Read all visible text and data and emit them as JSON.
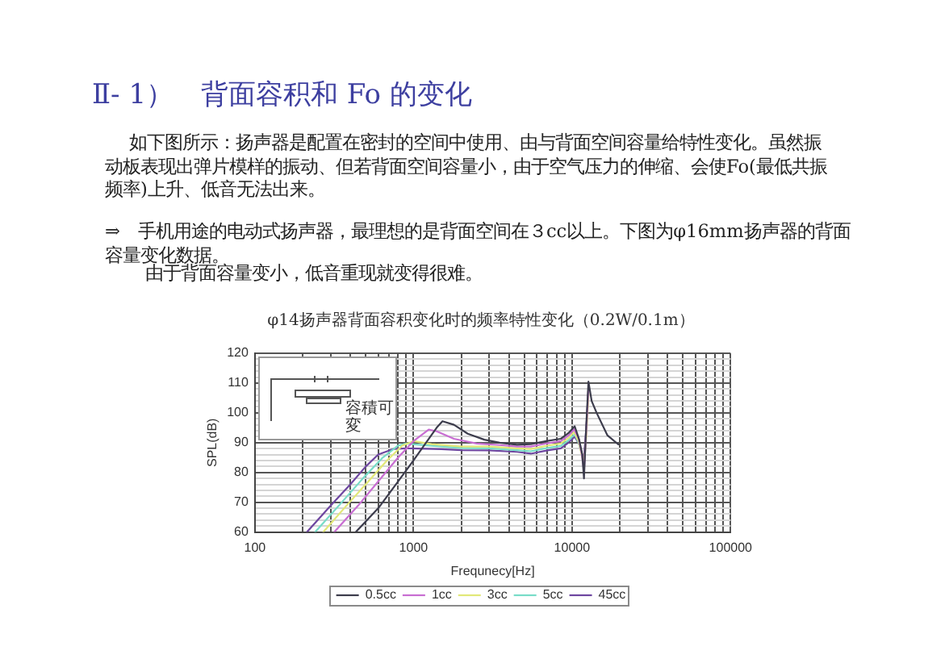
{
  "chart_data": {
    "type": "line",
    "title": "Ⅱ- 1）　背面容积和 Fo 的变化",
    "subtitle": "φ14扬声器背面容积变化时的频率特性变化（0.2W/0.1m）",
    "xlabel": "Frequnecy[Hz]",
    "ylabel": "SPL(dB)",
    "annotations": [
      "如下图所示：扬声器是配置在密封的空间中使用、由与背面空间容量给特性变化。虽然振动板表现出弹片模样的振动、但若背面空间容量小，由于空气压力的伸缩、会使Fo(最低共振频率)上升、低音无法出来。",
      "⇒　手机用途的电动式扬声器，最理想的是背面空间在３cc以上。下图为φ16mm扬声器的背面容量变化数据。",
      "由于背面容量变小，低音重现就变得很难。",
      "容積可変"
    ],
    "log": "x",
    "grid": true,
    "legend": "bottom",
    "line_style": "solid",
    "xlim": [
      100,
      100000
    ],
    "xticks": [
      100,
      {
        "value": 200,
        "label": null
      },
      {
        "value": 300,
        "label": null
      },
      {
        "value": 400,
        "label": null
      },
      {
        "value": 500,
        "label": null
      },
      {
        "value": 600,
        "label": null
      },
      {
        "value": 700,
        "label": null
      },
      {
        "value": 800,
        "label": null
      },
      {
        "value": 900,
        "label": null
      },
      1000,
      {
        "value": 2000,
        "label": null
      },
      {
        "value": 3000,
        "label": null
      },
      {
        "value": 4000,
        "label": null
      },
      {
        "value": 5000,
        "label": null
      },
      {
        "value": 6000,
        "label": null
      },
      {
        "value": 7000,
        "label": null
      },
      {
        "value": 8000,
        "label": null
      },
      {
        "value": 9000,
        "label": null
      },
      10000,
      {
        "value": 20000,
        "label": null
      },
      {
        "value": 30000,
        "label": null
      },
      {
        "value": 40000,
        "label": null
      },
      {
        "value": 50000,
        "label": null
      },
      {
        "value": 60000,
        "label": null
      },
      {
        "value": 70000,
        "label": null
      },
      {
        "value": 80000,
        "label": null
      },
      {
        "value": 90000,
        "label": null
      },
      100000
    ],
    "ylim": [
      60,
      120
    ],
    "yticks": [
      60,
      {
        "value": 62,
        "label": null
      },
      {
        "value": 64,
        "label": null
      },
      {
        "value": 66,
        "label": null
      },
      {
        "value": 68,
        "label": null
      },
      70,
      {
        "value": 72,
        "label": null
      },
      {
        "value": 74,
        "label": null
      },
      {
        "value": 76,
        "label": null
      },
      {
        "value": 78,
        "label": null
      },
      80,
      {
        "value": 82,
        "label": null
      },
      {
        "value": 84,
        "label": null
      },
      {
        "value": 86,
        "label": null
      },
      {
        "value": 88,
        "label": null
      },
      90,
      {
        "value": 92,
        "label": null
      },
      {
        "value": 94,
        "label": null
      },
      {
        "value": 96,
        "label": null
      },
      {
        "value": 98,
        "label": null
      },
      100,
      {
        "value": 102,
        "label": null
      },
      {
        "value": 104,
        "label": null
      },
      {
        "value": 106,
        "label": null
      },
      {
        "value": 108,
        "label": null
      },
      110,
      {
        "value": 112,
        "label": null
      },
      {
        "value": 114,
        "label": null
      },
      {
        "value": 116,
        "label": null
      },
      {
        "value": 118,
        "label": null
      },
      120
    ],
    "series": [
      {
        "name": "0.5cc",
        "color": "#3c3c4c",
        "x": [
          433,
          600,
          800,
          1000,
          1200,
          1400,
          1524,
          1800,
          2200,
          2800,
          3500,
          4500,
          5500,
          7000,
          8500,
          9500,
          10400,
          11100,
          11600,
          11900,
          12300,
          12700,
          13300,
          14300,
          16700,
          19600
        ],
        "values": [
          60,
          68,
          77,
          84,
          90,
          95,
          97.2,
          96,
          93,
          91,
          90,
          89.3,
          89.5,
          90.6,
          91.3,
          93.2,
          95.5,
          91,
          86,
          78,
          96,
          110.5,
          104,
          100,
          92.5,
          89.4
        ]
      },
      {
        "name": "1cc",
        "color": "#c86ed2",
        "x": [
          317,
          450,
          600,
          800,
          1000,
          1248,
          1400,
          1800,
          2500,
          3500,
          4500,
          5500,
          7000,
          8500,
          9500,
          10300,
          11000,
          11500,
          11900,
          12300,
          12700
        ],
        "values": [
          60,
          69,
          77,
          85,
          90.5,
          94.4,
          93.8,
          91.3,
          89.7,
          89.2,
          88.7,
          88.7,
          89.8,
          90.5,
          92.4,
          94.5,
          91.5,
          86.5,
          80.5,
          94,
          108.5
        ]
      },
      {
        "name": "3cc",
        "color": "#e2e878",
        "x": [
          270,
          380,
          520,
          680,
          850,
          1000,
          1300,
          2000,
          3000,
          4500,
          5500,
          7000,
          8500,
          9500,
          10300,
          11000,
          11500,
          11900,
          12300,
          12700
        ],
        "values": [
          60,
          69,
          77,
          84,
          89,
          90.5,
          89.5,
          88.7,
          88.7,
          88.1,
          87.9,
          89,
          89.7,
          91.6,
          93.6,
          90.5,
          86,
          83,
          92,
          106.5
        ]
      },
      {
        "name": "5cc",
        "color": "#78dcc8",
        "x": [
          240,
          340,
          480,
          640,
          800,
          900,
          1200,
          2000,
          3000,
          4500,
          5500,
          7000,
          8500,
          9500,
          10400,
          11000,
          11500
        ],
        "values": [
          60,
          69,
          78,
          85,
          89,
          89.7,
          89.1,
          88.2,
          88.1,
          87.5,
          87.1,
          88.2,
          88.9,
          90.8,
          92.8,
          90,
          86.5
        ]
      },
      {
        "name": "45cc",
        "color": "#6e46a0",
        "x": [
          213,
          300,
          400,
          500,
          600,
          751,
          900,
          1500,
          2000,
          3000,
          4500,
          5500,
          7000,
          8500,
          9500,
          10400,
          11100,
          11600,
          11900,
          12300,
          12700
        ],
        "values": [
          60,
          68.8,
          76,
          82,
          86,
          87.9,
          88.1,
          87.8,
          87.5,
          87.4,
          86.9,
          86.3,
          87.4,
          88.1,
          90,
          92,
          89.5,
          86,
          85,
          95,
          107.5
        ]
      }
    ]
  }
}
